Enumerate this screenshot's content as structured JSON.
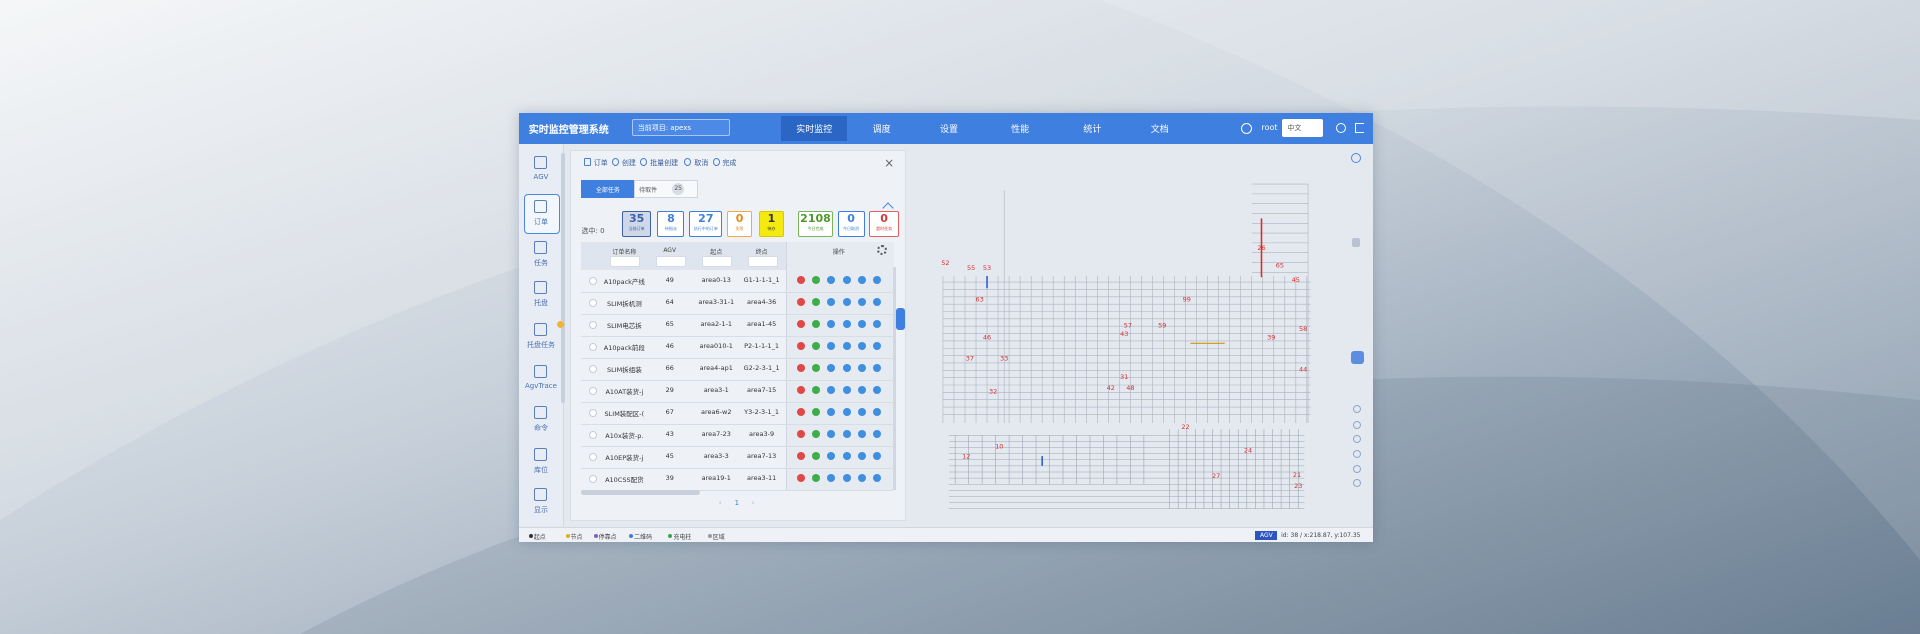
{
  "header": {
    "title": "实时监控管理系统",
    "project": "当前项目: apexs",
    "nav": [
      "实时监控",
      "调度",
      "设置",
      "性能",
      "统计",
      "文档"
    ],
    "user": "root",
    "language": "中文"
  },
  "sidebar": [
    "AGV",
    "订单",
    "任务",
    "托盘",
    "托盘任务",
    "AgvTrace",
    "命令",
    "库位",
    "显示"
  ],
  "panel": {
    "toolbar": [
      "订单",
      "创建",
      "批量创建",
      "取消",
      "完成"
    ],
    "tabs": [
      "全部任务",
      "待取件"
    ],
    "tab_badge": 25,
    "selected": "选中: 0",
    "stats": [
      {
        "value": 35,
        "label": "当前订单"
      },
      {
        "value": 8,
        "label": "待指派"
      },
      {
        "value": 27,
        "label": "执行中的订单"
      },
      {
        "value": 0,
        "label": "失败"
      },
      {
        "value": 1,
        "label": "待办"
      },
      {
        "value": 2108,
        "label": "今日完成"
      },
      {
        "value": 0,
        "label": "今日取消"
      },
      {
        "value": 0,
        "label": "超时任务"
      }
    ],
    "columns": [
      "订单名称",
      "AGV",
      "起点",
      "终点",
      "操作"
    ],
    "rows": [
      [
        "A10pack产线",
        49,
        "area0-13",
        "G1-1-1-1_1"
      ],
      [
        "SLIM拆机测",
        64,
        "area3-31-1",
        "area4-36"
      ],
      [
        "SLIM电芯拆",
        65,
        "area2-1-1",
        "area1-45"
      ],
      [
        "A10pack前段",
        46,
        "area010-1",
        "P2-1-1-1_1"
      ],
      [
        "SLIM拆组装",
        66,
        "area4-ap1",
        "G2-2-3-1_1"
      ],
      [
        "A10AT装货-j",
        29,
        "area3-1",
        "area7-15"
      ],
      [
        "SLIM装配区-(",
        67,
        "area6-w2",
        "Y3-2-3-1_1"
      ],
      [
        "A10x装货-p.",
        43,
        "area7-23",
        "area3-9"
      ],
      [
        "A10EP装货-j",
        45,
        "area3-3",
        "area7-13"
      ],
      [
        "A10CSS配货",
        39,
        "area19-1",
        "area3-11"
      ]
    ],
    "page": 1
  },
  "map": {
    "labels": [
      52,
      55,
      53,
      63,
      46,
      37,
      33,
      32,
      57,
      59,
      43,
      26,
      65,
      45,
      99,
      39,
      44,
      31,
      42,
      48,
      22,
      24,
      27,
      23,
      21,
      12,
      10,
      58
    ]
  },
  "status": {
    "legend": [
      "起点",
      "节点",
      "停靠点",
      "二维码",
      "充电柱",
      "区域"
    ],
    "badge": "AGV",
    "coords": "id: 38 / x:218.87, y:107.35"
  }
}
